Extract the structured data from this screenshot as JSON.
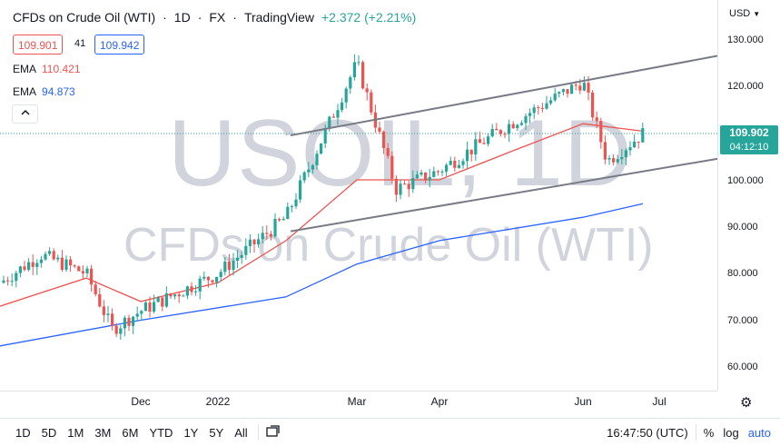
{
  "header": {
    "symbol": "CFDs on Crude Oil (WTI)",
    "interval": "1D",
    "exchange": "FX",
    "source": "TradingView",
    "change": "+2.372 (+2.21%)",
    "bid": "109.901",
    "spread": "41",
    "ask": "109.942"
  },
  "indicators": [
    {
      "name": "EMA",
      "value": "110.421",
      "color": "#ef5350"
    },
    {
      "name": "EMA",
      "value": "94.873",
      "color": "#2962ff"
    }
  ],
  "watermark": {
    "symbol": "USOIL, 1D",
    "description": "CFDs on Crude Oil (WTI)"
  },
  "price_axis": {
    "currency": "USD",
    "ticks": [
      "130.000",
      "120.000",
      "110.000",
      "100.000",
      "90.000",
      "80.000",
      "70.000",
      "60.000"
    ],
    "last_price": "109.902",
    "countdown": "04:12:10"
  },
  "time_axis": [
    "Dec",
    "2022",
    "Mar",
    "Apr",
    "Jun",
    "Jul"
  ],
  "toolbar": {
    "timeframes": [
      "1D",
      "5D",
      "1M",
      "3M",
      "6M",
      "YTD",
      "1Y",
      "5Y",
      "All"
    ],
    "clock": "16:47:50 (UTC)",
    "percent": "%",
    "log": "log",
    "auto": "auto"
  },
  "colors": {
    "up": "#26a69a",
    "down": "#ef5350",
    "ema_fast": "#ef5350",
    "ema_slow": "#2962ff",
    "trendline": "#787b86"
  },
  "icons": [
    "collapse-chevron-icon",
    "compare-icon",
    "settings-gear-icon"
  ],
  "chart_data": {
    "type": "candlestick",
    "symbol": "USOIL",
    "interval": "1D",
    "ylim": [
      56,
      134
    ],
    "price_key_points": [
      {
        "x": "Sep",
        "close": 78
      },
      {
        "x": "Oct",
        "close": 84
      },
      {
        "x": "Nov",
        "close": 80
      },
      {
        "x": "Nov",
        "close": 68
      },
      {
        "x": "Dec",
        "close": 72
      },
      {
        "x": "Jan",
        "close": 80
      },
      {
        "x": "Feb",
        "close": 92
      },
      {
        "x": "Mar",
        "close": 125
      },
      {
        "x": "Mar",
        "close": 98
      },
      {
        "x": "Apr",
        "close": 102
      },
      {
        "x": "May",
        "close": 112
      },
      {
        "x": "Jun",
        "close": 121
      },
      {
        "x": "Jun",
        "close": 104
      },
      {
        "x": "Jun",
        "close": 109.9
      }
    ],
    "ema_fast_key_points": [
      {
        "x": "Sep",
        "y": 73
      },
      {
        "x": "Nov",
        "y": 79
      },
      {
        "x": "Dec",
        "y": 74
      },
      {
        "x": "Jan",
        "y": 78
      },
      {
        "x": "Feb",
        "y": 87
      },
      {
        "x": "Mar",
        "y": 100
      },
      {
        "x": "Apr",
        "y": 100
      },
      {
        "x": "May",
        "y": 106
      },
      {
        "x": "Jun",
        "y": 112
      },
      {
        "x": "Jun",
        "y": 110.4
      }
    ],
    "ema_slow_key_points": [
      {
        "x": "Sep",
        "y": 64.5
      },
      {
        "x": "Dec",
        "y": 70
      },
      {
        "x": "Feb",
        "y": 75
      },
      {
        "x": "Mar",
        "y": 82
      },
      {
        "x": "Apr",
        "y": 87
      },
      {
        "x": "Jun",
        "y": 92
      },
      {
        "x": "Jun",
        "y": 94.9
      }
    ],
    "channel": [
      {
        "name": "upper",
        "from": {
          "x": "Feb",
          "y": 109.5
        },
        "to": {
          "x": "Jul",
          "y": 126.5
        }
      },
      {
        "name": "lower",
        "from": {
          "x": "Feb",
          "y": 89
        },
        "to": {
          "x": "Jul",
          "y": 104.5
        }
      }
    ]
  }
}
